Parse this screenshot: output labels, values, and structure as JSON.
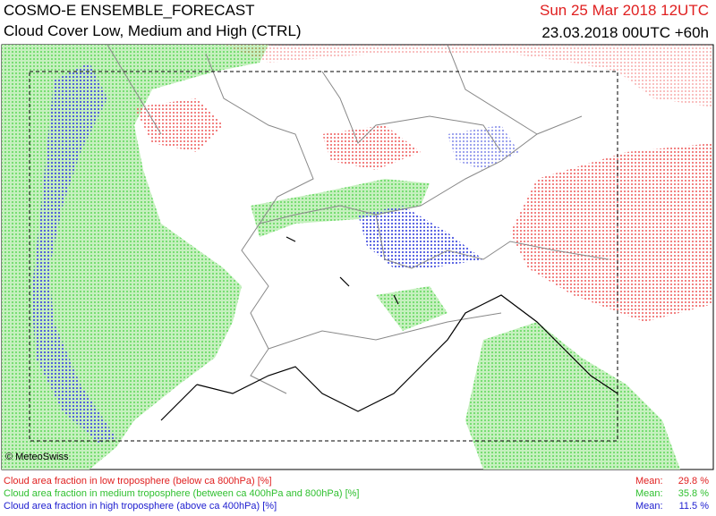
{
  "header": {
    "title": "COSMO-E ENSEMBLE_FORECAST",
    "subtitle": "Cloud Cover Low, Medium and High (CTRL)",
    "valid_time": "Sun 25 Mar 2018 12UTC",
    "init_time": "23.03.2018 00UTC +60h"
  },
  "map": {
    "copyright": "© MeteoSwiss"
  },
  "legend": {
    "items": [
      {
        "label": "Cloud area fraction in low troposphere (below ca 800hPa) [%]",
        "mean_label": "Mean:",
        "mean": "29.8 %"
      },
      {
        "label": "Cloud area fraction in medium troposphere (between ca 400hPa and 800hPa) [%]",
        "mean_label": "Mean:",
        "mean": "35.8 %"
      },
      {
        "label": "Cloud area fraction in high troposphere (above ca 400hPa) [%]",
        "mean_label": "Mean:",
        "mean": "11.5 %"
      }
    ]
  }
}
